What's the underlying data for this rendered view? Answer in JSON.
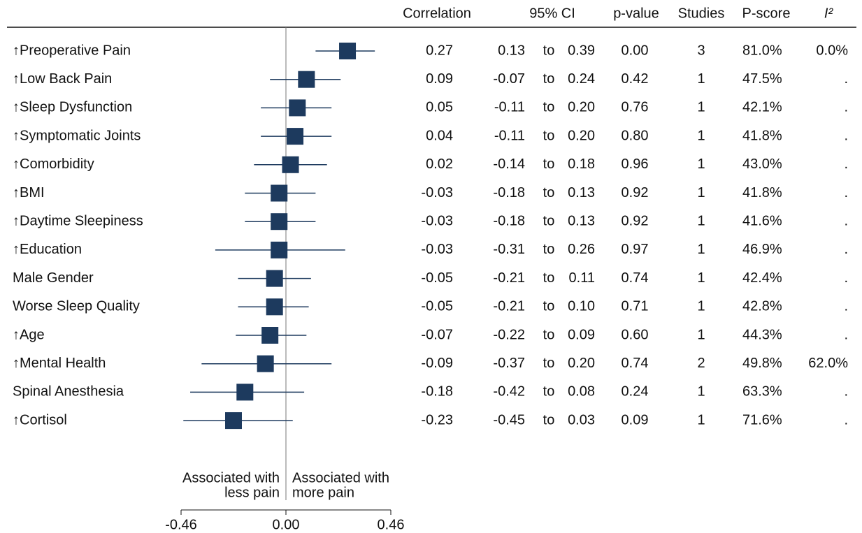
{
  "chart_data": {
    "type": "forest",
    "headers": {
      "correlation": "Correlation",
      "ci": "95% CI",
      "p_value": "p-value",
      "studies": "Studies",
      "p_score": "P-score",
      "i2": "I²"
    },
    "ci_separator": "to",
    "categories": [
      "↑Preoperative Pain",
      "↑Low Back Pain",
      "↑Sleep Dysfunction",
      "↑Symptomatic Joints",
      "↑Comorbidity",
      "↑BMI",
      "↑Daytime Sleepiness",
      "↑Education",
      "Male Gender",
      "Worse Sleep Quality",
      "↑Age",
      "↑Mental Health",
      "Spinal Anesthesia",
      "↑Cortisol"
    ],
    "values": [
      0.27,
      0.09,
      0.05,
      0.04,
      0.02,
      -0.03,
      -0.03,
      -0.03,
      -0.05,
      -0.05,
      -0.07,
      -0.09,
      -0.18,
      -0.23
    ],
    "value_labels": [
      "0.27",
      "0.09",
      "0.05",
      "0.04",
      "0.02",
      "-0.03",
      "-0.03",
      "-0.03",
      "-0.05",
      "-0.05",
      "-0.07",
      "-0.09",
      "-0.18",
      "-0.23"
    ],
    "ci_low": [
      0.13,
      -0.07,
      -0.11,
      -0.11,
      -0.14,
      -0.18,
      -0.18,
      -0.31,
      -0.21,
      -0.21,
      -0.22,
      -0.37,
      -0.42,
      -0.45
    ],
    "ci_low_labels": [
      "0.13",
      "-0.07",
      "-0.11",
      "-0.11",
      "-0.14",
      "-0.18",
      "-0.18",
      "-0.31",
      "-0.21",
      "-0.21",
      "-0.22",
      "-0.37",
      "-0.42",
      "-0.45"
    ],
    "ci_high": [
      0.39,
      0.24,
      0.2,
      0.2,
      0.18,
      0.13,
      0.13,
      0.26,
      0.11,
      0.1,
      0.09,
      0.2,
      0.08,
      0.03
    ],
    "ci_high_labels": [
      "0.39",
      "0.24",
      "0.20",
      "0.20",
      "0.18",
      "0.13",
      "0.13",
      "0.26",
      "0.11",
      "0.10",
      "0.09",
      "0.20",
      "0.08",
      "0.03"
    ],
    "p_values": [
      "0.00",
      "0.42",
      "0.76",
      "0.80",
      "0.96",
      "0.92",
      "0.92",
      "0.97",
      "0.74",
      "0.71",
      "0.60",
      "0.74",
      "0.24",
      "0.09"
    ],
    "studies": [
      3,
      1,
      1,
      1,
      1,
      1,
      1,
      1,
      1,
      1,
      1,
      2,
      1,
      1
    ],
    "p_scores": [
      "81.0%",
      "47.5%",
      "42.1%",
      "41.8%",
      "43.0%",
      "41.8%",
      "41.6%",
      "46.9%",
      "42.4%",
      "42.8%",
      "44.3%",
      "49.8%",
      "63.3%",
      "71.6%"
    ],
    "i2": [
      "0.0%",
      ".",
      ".",
      ".",
      ".",
      ".",
      ".",
      ".",
      ".",
      ".",
      ".",
      "62.0%",
      ".",
      "."
    ],
    "xlim": [
      -0.46,
      0.46
    ],
    "xticks": [
      -0.46,
      {
        "value": 0,
        "label": "0.00"
      },
      0.46
    ],
    "annotations": {
      "left_line1": "Associated with",
      "left_line2": "less pain",
      "right_line1": "Associated with",
      "right_line2": "more pain"
    },
    "color": "#1d3a5e"
  }
}
